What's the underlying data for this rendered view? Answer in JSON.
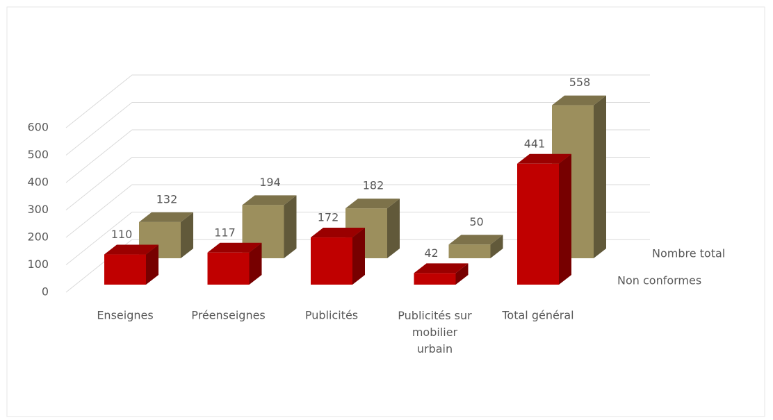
{
  "chart_data": {
    "type": "bar3d",
    "categories": [
      "Enseignes",
      "Préenseignes",
      "Publicités",
      "Publicités sur mobilier urbain",
      "Total général"
    ],
    "series": [
      {
        "name": "Non conformes",
        "color": "#c00000",
        "values": [
          110,
          117,
          172,
          42,
          441
        ]
      },
      {
        "name": "Nombre total",
        "color": "#9c8f5d",
        "values": [
          132,
          194,
          182,
          50,
          558
        ]
      }
    ],
    "ylim": [
      0,
      600
    ],
    "yticks": [
      0,
      100,
      200,
      300,
      400,
      500,
      600
    ],
    "grid": true
  }
}
